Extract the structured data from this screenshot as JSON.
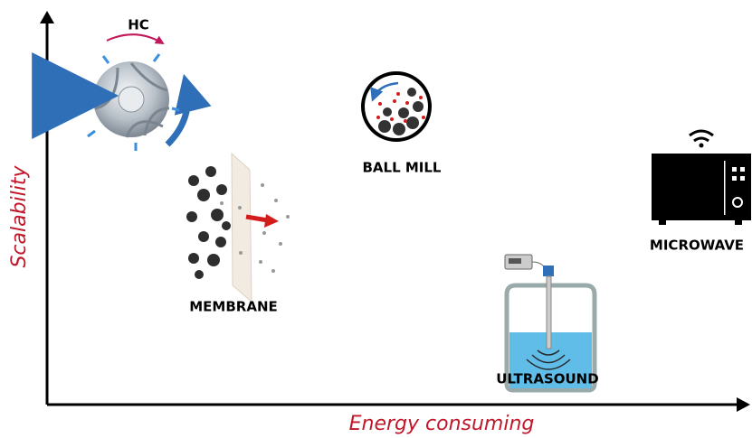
{
  "axes": {
    "y_label": "Scalability",
    "x_label": "Energy consuming"
  },
  "nodes": [
    {
      "label": "HC"
    },
    {
      "label": "BALL MILL"
    },
    {
      "label": "MEMBRANE"
    },
    {
      "label": "ULTRASOUND"
    },
    {
      "label": "MICROWAVE"
    }
  ]
}
